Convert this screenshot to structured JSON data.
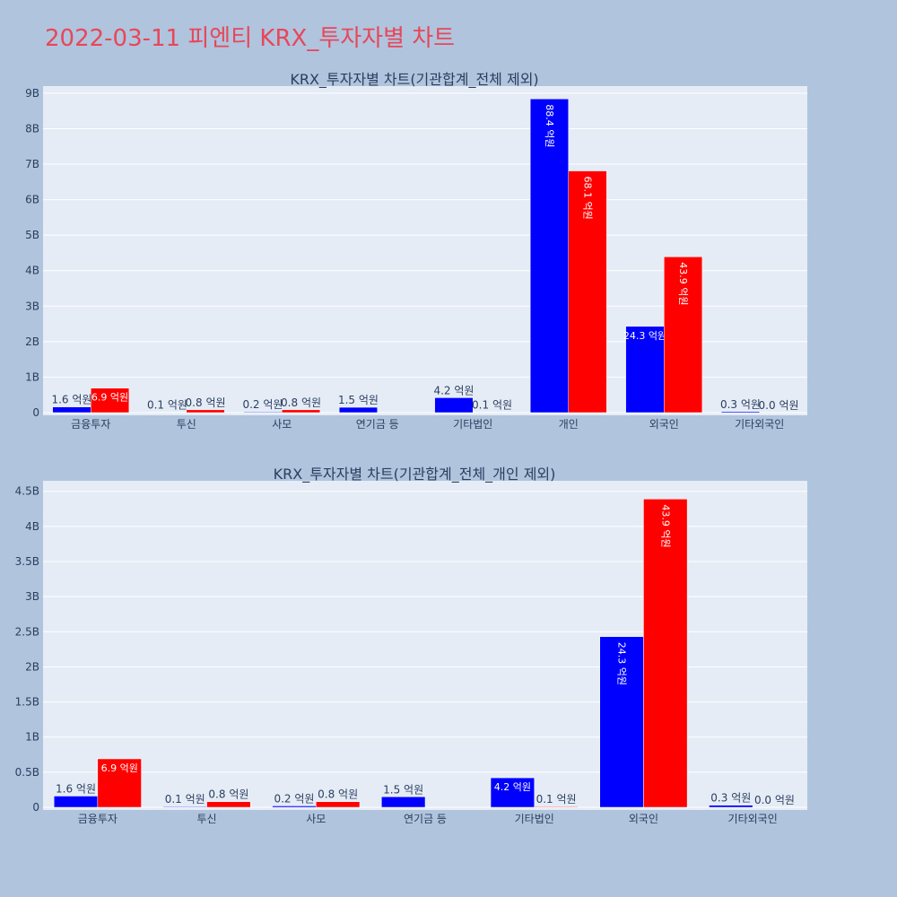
{
  "page_title": "2022-03-11 피엔티 KRX_투자자별 차트",
  "colors": {
    "buy": "#0000ff",
    "sell": "#ff0000",
    "plot_bg": "#e5ecf6",
    "page_bg": "#b0c4de"
  },
  "chart_data": [
    {
      "type": "bar",
      "title": "KRX_투자자별 차트(기관합계_전체 제외)",
      "categories": [
        "금융투자",
        "투신",
        "사모",
        "연기금 등",
        "기타법인",
        "개인",
        "외국인",
        "기타외국인"
      ],
      "series": [
        {
          "color": "#0000ff",
          "values": [
            160000000,
            10000000,
            20000000,
            150000000,
            420000000,
            8840000000,
            2430000000,
            30000000
          ],
          "labels": [
            "1.6 억원",
            "0.1 억원",
            "0.2 억원",
            "1.5 억원",
            "4.2 억원",
            "88.4 억원",
            "24.3 억원",
            "0.3 억원"
          ]
        },
        {
          "color": "#ff0000",
          "values": [
            690000000,
            80000000,
            80000000,
            0,
            10000000,
            6810000000,
            4390000000,
            0
          ],
          "labels": [
            "6.9 억원",
            "0.8 억원",
            "0.8 억원",
            "",
            "0.1 억원",
            "68.1 억원",
            "43.9 억원",
            "0.0 억원"
          ]
        }
      ],
      "ylim": [
        0,
        9200000000
      ],
      "yticks": [
        0,
        1000000000,
        2000000000,
        3000000000,
        4000000000,
        5000000000,
        6000000000,
        7000000000,
        8000000000,
        9000000000
      ],
      "yticklabels": [
        "0",
        "1B",
        "2B",
        "3B",
        "4B",
        "5B",
        "6B",
        "7B",
        "8B",
        "9B"
      ],
      "xlabel": "",
      "ylabel": "",
      "grid": true
    },
    {
      "type": "bar",
      "title": "KRX_투자자별 차트(기관합계_전체_개인 제외)",
      "categories": [
        "금융투자",
        "투신",
        "사모",
        "연기금 등",
        "기타법인",
        "외국인",
        "기타외국인"
      ],
      "series": [
        {
          "color": "#0000ff",
          "values": [
            160000000,
            10000000,
            20000000,
            150000000,
            420000000,
            2430000000,
            30000000
          ],
          "labels": [
            "1.6 억원",
            "0.1 억원",
            "0.2 억원",
            "1.5 억원",
            "4.2 억원",
            "24.3 억원",
            "0.3 억원"
          ]
        },
        {
          "color": "#ff0000",
          "values": [
            690000000,
            80000000,
            80000000,
            0,
            10000000,
            4390000000,
            0
          ],
          "labels": [
            "6.9 억원",
            "0.8 억원",
            "0.8 억원",
            "",
            "0.1 억원",
            "43.9 억원",
            "0.0 억원"
          ]
        }
      ],
      "ylim": [
        0,
        4650000000
      ],
      "yticks": [
        0,
        500000000,
        1000000000,
        1500000000,
        2000000000,
        2500000000,
        3000000000,
        3500000000,
        4000000000,
        4500000000
      ],
      "yticklabels": [
        "0",
        "0.5B",
        "1B",
        "1.5B",
        "2B",
        "2.5B",
        "3B",
        "3.5B",
        "4B",
        "4.5B"
      ],
      "xlabel": "",
      "ylabel": "",
      "grid": true
    }
  ]
}
